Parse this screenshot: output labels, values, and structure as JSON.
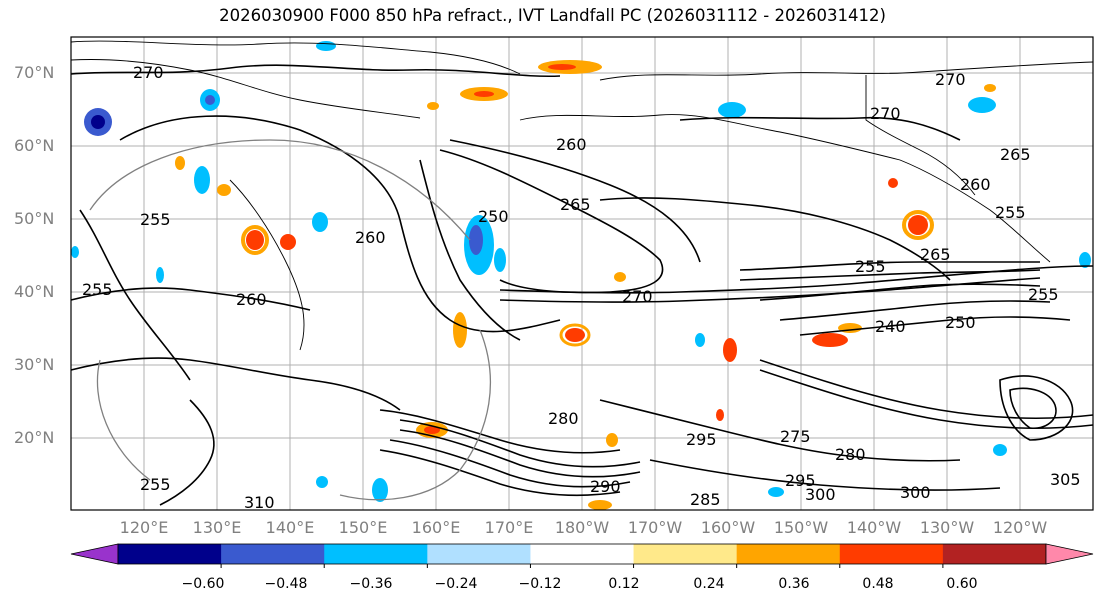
{
  "title": "2026030900 F000 850 hPa refract., IVT Landfall PC (2026031112 - 2026031412)",
  "latitude_labels": [
    "70°N",
    "60°N",
    "50°N",
    "40°N",
    "30°N",
    "20°N"
  ],
  "longitude_labels": [
    "120°E",
    "130°E",
    "140°E",
    "150°E",
    "160°E",
    "170°E",
    "180°W",
    "170°W",
    "160°W",
    "150°W",
    "140°W",
    "130°W",
    "120°W"
  ],
  "contour_labels": [
    "270",
    "270",
    "270",
    "260",
    "265",
    "260",
    "255",
    "255",
    "265",
    "260",
    "260",
    "250",
    "255",
    "265",
    "270",
    "255",
    "255",
    "240",
    "250",
    "255",
    "280",
    "295",
    "275",
    "280",
    "295",
    "300",
    "300",
    "285",
    "290",
    "310",
    "305"
  ],
  "colorbar": {
    "colors": [
      "#9933cc",
      "#00008b",
      "#3a5acf",
      "#00bfff",
      "#b0e0ff",
      "#ffffff",
      "#ffe98a",
      "#ffa500",
      "#ff3c00",
      "#b22222",
      "#ff88aa"
    ],
    "ticks": [
      "−0.60",
      "−0.48",
      "−0.36",
      "−0.24",
      "−0.12",
      "0.12",
      "0.24",
      "0.36",
      "0.48",
      "0.60"
    ],
    "min_color": "#9933cc",
    "max_color": "#ff88aa"
  }
}
